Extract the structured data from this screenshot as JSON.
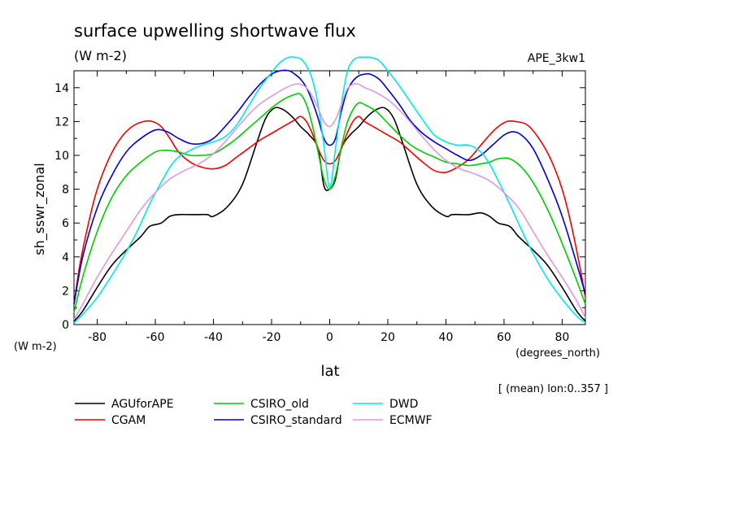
{
  "chart_data": {
    "type": "line",
    "title": "surface upwelling shortwave flux",
    "subtitle": "(W m-2)",
    "run_label": "APE_3kw1",
    "xlabel": "lat",
    "xunits": "(degrees_north)",
    "ylabel": "sh_sswr_zonal",
    "yunits": "(W m-2)",
    "footnote": "[ (mean) lon:0..357 ]",
    "xlim": [
      -88,
      88
    ],
    "ylim": [
      0,
      15
    ],
    "xticks": [
      -80,
      -60,
      -40,
      -20,
      0,
      20,
      40,
      60,
      80
    ],
    "yticks": [
      0,
      2,
      4,
      6,
      8,
      10,
      12,
      14
    ],
    "grid": false,
    "legend_position": "bottom",
    "series": [
      {
        "name": "AGUforAPE",
        "color": "#000000",
        "x": [
          -88,
          -85,
          -80,
          -75,
          -70,
          -65,
          -62,
          -58,
          -55,
          -52,
          -48,
          -45,
          -42,
          -40,
          -35,
          -30,
          -25,
          -22,
          -19,
          -16,
          -13,
          -10,
          -7,
          -4,
          -2,
          0,
          2,
          4,
          7,
          10,
          13,
          16,
          19,
          22,
          25,
          30,
          35,
          40,
          42,
          45,
          48,
          52,
          55,
          58,
          62,
          65,
          70,
          75,
          80,
          85,
          88
        ],
        "values": [
          0.2,
          0.8,
          2.2,
          3.5,
          4.4,
          5.2,
          5.8,
          6.0,
          6.4,
          6.5,
          6.5,
          6.5,
          6.5,
          6.4,
          7.0,
          8.3,
          10.8,
          12.2,
          12.8,
          12.7,
          12.3,
          11.7,
          11.2,
          10.4,
          8.2,
          8.0,
          8.6,
          10.4,
          11.2,
          11.7,
          12.3,
          12.7,
          12.8,
          12.2,
          10.8,
          8.3,
          7.0,
          6.4,
          6.5,
          6.5,
          6.5,
          6.6,
          6.4,
          6.0,
          5.8,
          5.2,
          4.4,
          3.5,
          2.2,
          0.8,
          0.2
        ]
      },
      {
        "name": "CGAM",
        "color": "#ee0000",
        "x": [
          -88,
          -86,
          -83,
          -80,
          -76,
          -72,
          -68,
          -64,
          -61,
          -58,
          -55,
          -52,
          -48,
          -44,
          -40,
          -36,
          -32,
          -28,
          -24,
          -20,
          -16,
          -12,
          -10,
          -8,
          -6,
          -4,
          -2,
          0,
          2,
          4,
          6,
          8,
          10,
          12,
          16,
          20,
          24,
          28,
          32,
          36,
          40,
          44,
          48,
          52,
          55,
          58,
          61,
          64,
          68,
          72,
          76,
          80,
          83,
          86,
          88
        ],
        "values": [
          1.2,
          3.5,
          6.0,
          8.0,
          9.8,
          11.0,
          11.7,
          12.0,
          12.0,
          11.7,
          11.0,
          10.2,
          9.6,
          9.3,
          9.2,
          9.4,
          9.9,
          10.4,
          10.9,
          11.3,
          11.7,
          12.1,
          12.3,
          12.0,
          11.3,
          10.4,
          9.7,
          9.5,
          9.7,
          10.4,
          11.3,
          12.0,
          12.3,
          12.0,
          11.6,
          11.2,
          10.8,
          10.2,
          9.6,
          9.1,
          9.0,
          9.3,
          9.8,
          10.6,
          11.2,
          11.7,
          12.0,
          12.0,
          11.8,
          11.0,
          9.8,
          8.0,
          6.0,
          3.5,
          1.6
        ]
      },
      {
        "name": "CSIRO_old",
        "color": "#00cc00",
        "x": [
          -88,
          -85,
          -80,
          -75,
          -70,
          -65,
          -60,
          -56,
          -52,
          -48,
          -44,
          -40,
          -36,
          -32,
          -28,
          -24,
          -20,
          -16,
          -12,
          -10,
          -8,
          -6,
          -4,
          -2,
          0,
          2,
          4,
          6,
          8,
          10,
          12,
          16,
          20,
          24,
          28,
          32,
          36,
          40,
          44,
          48,
          52,
          55,
          58,
          62,
          66,
          70,
          75,
          80,
          85,
          88
        ],
        "values": [
          0.7,
          2.8,
          5.5,
          7.5,
          8.8,
          9.6,
          10.2,
          10.3,
          10.2,
          10.0,
          10.0,
          10.1,
          10.5,
          11.0,
          11.6,
          12.2,
          12.8,
          13.3,
          13.6,
          13.6,
          13.0,
          11.8,
          10.2,
          8.6,
          8.0,
          8.8,
          10.5,
          11.9,
          12.7,
          13.1,
          13.0,
          12.6,
          11.9,
          11.2,
          10.6,
          10.2,
          9.9,
          9.6,
          9.5,
          9.4,
          9.5,
          9.6,
          9.8,
          9.8,
          9.3,
          8.4,
          6.8,
          4.8,
          2.6,
          1.2
        ]
      },
      {
        "name": "CSIRO_standard",
        "color": "#0000cc",
        "x": [
          -88,
          -85,
          -80,
          -75,
          -70,
          -65,
          -60,
          -56,
          -52,
          -48,
          -44,
          -40,
          -36,
          -32,
          -28,
          -24,
          -20,
          -17,
          -14,
          -12,
          -10,
          -8,
          -6,
          -4,
          -2,
          0,
          2,
          4,
          6,
          8,
          10,
          12,
          14,
          17,
          20,
          24,
          28,
          32,
          36,
          40,
          44,
          48,
          52,
          56,
          60,
          63,
          66,
          70,
          75,
          80,
          85,
          88
        ],
        "values": [
          1.2,
          4.0,
          6.9,
          8.8,
          10.2,
          11.0,
          11.5,
          11.4,
          11.0,
          10.7,
          10.7,
          11.0,
          11.7,
          12.5,
          13.4,
          14.2,
          14.8,
          15.0,
          15.0,
          14.8,
          14.5,
          14.0,
          13.2,
          12.2,
          11.0,
          10.6,
          11.0,
          12.6,
          13.8,
          14.4,
          14.7,
          14.8,
          14.8,
          14.5,
          13.9,
          13.0,
          12.0,
          11.3,
          10.8,
          10.4,
          10.0,
          9.7,
          10.0,
          10.6,
          11.2,
          11.4,
          11.2,
          10.4,
          8.6,
          6.4,
          3.6,
          1.8
        ]
      },
      {
        "name": "DWD",
        "color": "#00e8e8",
        "x": [
          -88,
          -85,
          -80,
          -75,
          -70,
          -66,
          -62,
          -58,
          -55,
          -52,
          -48,
          -44,
          -40,
          -36,
          -32,
          -28,
          -24,
          -20,
          -17,
          -14,
          -12,
          -10,
          -8,
          -6,
          -4,
          -2,
          0,
          2,
          4,
          6,
          8,
          10,
          12,
          14,
          17,
          20,
          24,
          28,
          32,
          36,
          40,
          44,
          48,
          52,
          55,
          58,
          62,
          66,
          70,
          75,
          80,
          85,
          88
        ],
        "values": [
          0.1,
          0.6,
          1.6,
          2.9,
          4.3,
          5.6,
          7.1,
          8.4,
          9.3,
          9.9,
          10.3,
          10.6,
          10.8,
          11.1,
          11.8,
          12.9,
          14.0,
          14.9,
          15.5,
          15.8,
          15.8,
          15.7,
          15.3,
          14.5,
          13.0,
          10.6,
          8.1,
          10.4,
          13.0,
          14.9,
          15.6,
          15.8,
          15.8,
          15.8,
          15.6,
          15.0,
          14.1,
          13.1,
          12.1,
          11.2,
          10.8,
          10.6,
          10.6,
          10.2,
          9.5,
          8.5,
          7.1,
          5.6,
          4.2,
          2.7,
          1.5,
          0.5,
          0.1
        ]
      },
      {
        "name": "ECMWF",
        "color": "#dd99dd",
        "x": [
          -88,
          -85,
          -80,
          -75,
          -70,
          -65,
          -60,
          -55,
          -50,
          -45,
          -40,
          -35,
          -30,
          -25,
          -20,
          -15,
          -12,
          -10,
          -8,
          -6,
          -4,
          -2,
          0,
          2,
          4,
          6,
          8,
          10,
          12,
          15,
          20,
          25,
          30,
          35,
          40,
          45,
          50,
          55,
          60,
          65,
          70,
          75,
          80,
          85,
          88
        ],
        "values": [
          0.3,
          1.2,
          2.8,
          4.2,
          5.5,
          6.8,
          7.8,
          8.6,
          9.1,
          9.5,
          10.1,
          11.0,
          12.0,
          12.9,
          13.5,
          14.0,
          14.2,
          14.2,
          14.0,
          13.5,
          12.8,
          12.0,
          11.7,
          12.1,
          13.0,
          13.9,
          14.2,
          14.2,
          14.0,
          13.8,
          13.3,
          12.5,
          11.5,
          10.5,
          9.7,
          9.2,
          8.9,
          8.5,
          7.8,
          6.9,
          5.5,
          4.1,
          2.8,
          1.4,
          0.4
        ]
      }
    ]
  }
}
